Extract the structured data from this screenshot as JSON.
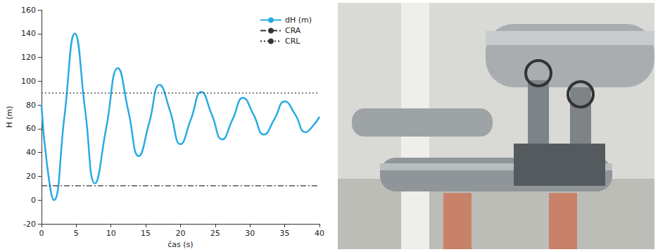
{
  "chart_data": {
    "type": "line",
    "xlabel": "čas (s)",
    "ylabel": "H (m)",
    "xlim": [
      0,
      40
    ],
    "xticks": [
      0,
      5,
      10,
      15,
      20,
      25,
      30,
      35,
      40
    ],
    "ylim": [
      -20,
      160
    ],
    "yticks": [
      -20,
      0,
      20,
      40,
      60,
      80,
      100,
      120,
      140,
      160
    ],
    "grid": false,
    "legend": "upper right",
    "series": [
      {
        "name": "dH (m)",
        "color": "#29abe2",
        "line_style": "solid",
        "x": [
          0,
          0.8,
          1.8,
          3.3,
          4.8,
          6.3,
          7.7,
          9.3,
          11,
          12.5,
          14,
          15.5,
          17,
          18.5,
          20,
          21.5,
          23,
          24.5,
          26,
          27.5,
          29,
          30.5,
          32,
          33.5,
          35,
          36.5,
          38,
          39,
          40
        ],
        "values": [
          80,
          30,
          0,
          70,
          140,
          75,
          14,
          60,
          111,
          75,
          37,
          65,
          97,
          75,
          47,
          68,
          91,
          72,
          51,
          68,
          86,
          72,
          55,
          68,
          83,
          72,
          57,
          62,
          70
        ]
      },
      {
        "name": "CRA",
        "color": "#333333",
        "line_style": "dashdot",
        "x": [
          0,
          40
        ],
        "values": [
          12,
          12
        ]
      },
      {
        "name": "CRL",
        "color": "#333333",
        "line_style": "dotted",
        "x": [
          0,
          40
        ],
        "values": [
          90,
          90
        ]
      }
    ]
  }
}
